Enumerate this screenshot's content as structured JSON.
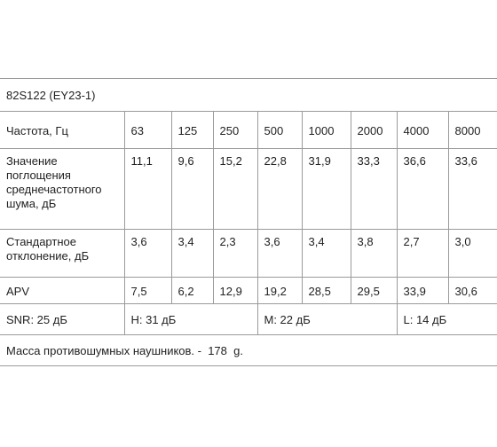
{
  "title": "82S122 (EY23-1)",
  "table": {
    "header": [
      "Частота, Гц",
      "63",
      "125",
      "250",
      "500",
      "1000",
      "2000",
      "4000",
      "8000"
    ],
    "rows": [
      [
        "Значение поглощения среднечастотного шума, дБ",
        "11,1",
        "9,6",
        "15,2",
        "22,8",
        "31,9",
        "33,3",
        "36,6",
        "33,6"
      ],
      [
        "Стандартное отклонение, дБ",
        "3,6",
        "3,4",
        "2,3",
        "3,6",
        "3,4",
        "3,8",
        "2,7",
        "3,0"
      ],
      [
        "APV",
        "7,5",
        "6,2",
        "12,9",
        "19,2",
        "28,5",
        "29,5",
        "33,9",
        "30,6"
      ]
    ]
  },
  "snr": [
    "SNR: 25 дБ",
    "H: 31 дБ",
    "M: 22 дБ",
    "L: 14 дБ"
  ],
  "footer": "Масса противошумных наушников. -  178  g."
}
